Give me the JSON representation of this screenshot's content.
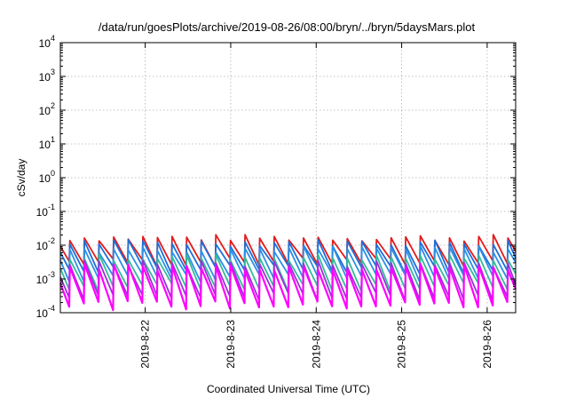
{
  "chart_data": {
    "type": "line",
    "title": "/data/run/goesPlots/archive/2019-08-26/08:00/bryn/../bryn/5daysMars.plot",
    "xlabel": "Coordinated Universal Time (UTC)",
    "ylabel": "cSv/day",
    "yscale": "log",
    "ylim": [
      0.0001,
      10000
    ],
    "y_tick_labels": [
      {
        "base": "10",
        "exp": "-4"
      },
      {
        "base": "10",
        "exp": "-3"
      },
      {
        "base": "10",
        "exp": "-2"
      },
      {
        "base": "10",
        "exp": "-1"
      },
      {
        "base": "10",
        "exp": "0"
      },
      {
        "base": "10",
        "exp": "1"
      },
      {
        "base": "10",
        "exp": "2"
      },
      {
        "base": "10",
        "exp": "3"
      },
      {
        "base": "10",
        "exp": "4"
      }
    ],
    "xlim": [
      "2019-08-21T00:10",
      "2019-08-26T08:00"
    ],
    "x_tick_labels": [
      "2019-8-22",
      "2019-8-23",
      "2019-8-24",
      "2019-8-25",
      "2019-8-26"
    ],
    "grid": true,
    "sawtooth_period_hours": 4.1,
    "series": [
      {
        "color": "#e41a1c",
        "peak": 0.016,
        "trough": 0.0032
      },
      {
        "color": "#1f6fd6",
        "peak": 0.0115,
        "trough": 0.002
      },
      {
        "color": "#2b8fe6",
        "peak": 0.0075,
        "trough": 0.0011
      },
      {
        "color": "#33bb99",
        "peak": 0.0042,
        "trough": 0.0006
      },
      {
        "color": "#9b30d9",
        "peak": 0.0028,
        "trough": 0.0003
      },
      {
        "color": "#ff00ff",
        "peak": 0.0022,
        "trough": 0.00017
      }
    ]
  }
}
